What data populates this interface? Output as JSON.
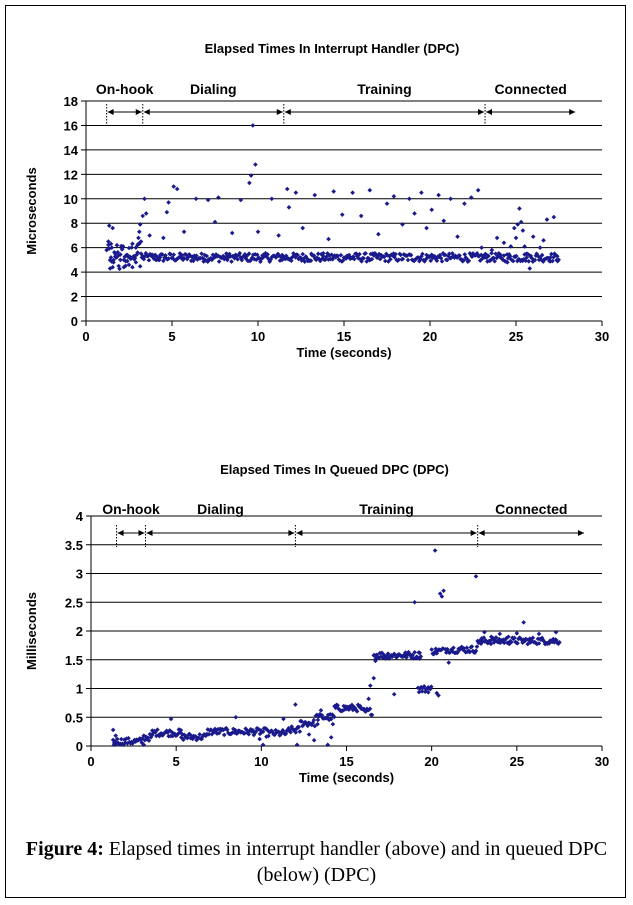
{
  "chart_data": [
    {
      "type": "scatter",
      "title": "Elapsed Times In Interrupt Handler (DPC)",
      "xlabel": "Time (seconds)",
      "ylabel": "Microseconds",
      "xlim": [
        0,
        30
      ],
      "ylim": [
        0,
        18
      ],
      "xticks": [
        0,
        5,
        10,
        15,
        20,
        25,
        30
      ],
      "yticks": [
        0,
        2,
        4,
        6,
        8,
        10,
        12,
        14,
        16,
        18
      ],
      "grid": "horizontal",
      "marker_color": "#1a1a8c",
      "phases": [
        {
          "label": "On-hook",
          "start": 1.2,
          "end": 3.3
        },
        {
          "label": "Dialing",
          "start": 3.3,
          "end": 11.5
        },
        {
          "label": "Training",
          "start": 11.5,
          "end": 23.2
        },
        {
          "label": "Connected",
          "start": 23.2,
          "end": 28.5
        }
      ],
      "points": [
        [
          1.2,
          5.8
        ],
        [
          1.3,
          6.5
        ],
        [
          1.35,
          7.8
        ],
        [
          1.4,
          4.3
        ],
        [
          1.45,
          5.2
        ],
        [
          1.5,
          6.0
        ],
        [
          1.55,
          7.6
        ],
        [
          1.6,
          4.8
        ],
        [
          1.7,
          5.5
        ],
        [
          1.8,
          6.2
        ],
        [
          1.9,
          4.5
        ],
        [
          2.0,
          5.0
        ],
        [
          2.1,
          5.9
        ],
        [
          2.2,
          4.4
        ],
        [
          2.3,
          4.9
        ],
        [
          2.4,
          5.4
        ],
        [
          2.5,
          4.6
        ],
        [
          2.6,
          5.1
        ],
        [
          2.7,
          4.4
        ],
        [
          2.8,
          5.3
        ],
        [
          2.9,
          4.8
        ],
        [
          3.0,
          5.6
        ],
        [
          3.05,
          6.8
        ],
        [
          3.1,
          7.3
        ],
        [
          3.15,
          7.9
        ],
        [
          3.2,
          6.5
        ],
        [
          3.25,
          5.2
        ],
        [
          3.3,
          8.6
        ],
        [
          3.4,
          10.0
        ],
        [
          3.5,
          8.8
        ],
        [
          3.6,
          5.3
        ],
        [
          3.7,
          7.0
        ],
        [
          3.8,
          5.4
        ],
        [
          3.9,
          5.2
        ],
        [
          4.0,
          5.3
        ],
        [
          4.3,
          5.2
        ],
        [
          4.5,
          6.8
        ],
        [
          4.7,
          8.9
        ],
        [
          4.8,
          9.7
        ],
        [
          5.1,
          11.0
        ],
        [
          5.3,
          10.8
        ],
        [
          5.5,
          5.3
        ],
        [
          5.7,
          7.3
        ],
        [
          6.2,
          5.2
        ],
        [
          6.4,
          10.0
        ],
        [
          6.9,
          5.4
        ],
        [
          7.1,
          9.9
        ],
        [
          7.5,
          8.1
        ],
        [
          7.7,
          10.1
        ],
        [
          8.2,
          5.3
        ],
        [
          8.5,
          7.2
        ],
        [
          9.0,
          9.9
        ],
        [
          9.3,
          5.1
        ],
        [
          9.5,
          11.3
        ],
        [
          9.6,
          11.9
        ],
        [
          9.7,
          16.0
        ],
        [
          9.85,
          12.8
        ],
        [
          10.0,
          7.3
        ],
        [
          10.3,
          5.2
        ],
        [
          10.8,
          10.0
        ],
        [
          11.2,
          7.0
        ],
        [
          11.4,
          5.4
        ],
        [
          11.7,
          10.8
        ],
        [
          11.8,
          9.3
        ],
        [
          12.2,
          10.5
        ],
        [
          12.6,
          7.6
        ],
        [
          13.1,
          5.5
        ],
        [
          13.3,
          10.3
        ],
        [
          13.8,
          5.3
        ],
        [
          14.1,
          6.7
        ],
        [
          14.4,
          10.6
        ],
        [
          14.9,
          8.7
        ],
        [
          15.3,
          5.4
        ],
        [
          15.5,
          10.5
        ],
        [
          16.0,
          8.6
        ],
        [
          16.5,
          10.7
        ],
        [
          17.0,
          7.1
        ],
        [
          17.5,
          9.6
        ],
        [
          17.9,
          10.2
        ],
        [
          18.4,
          7.9
        ],
        [
          18.8,
          10.0
        ],
        [
          19.1,
          8.8
        ],
        [
          19.5,
          10.5
        ],
        [
          19.8,
          7.6
        ],
        [
          20.1,
          9.1
        ],
        [
          20.5,
          10.3
        ],
        [
          20.8,
          8.2
        ],
        [
          21.2,
          10.0
        ],
        [
          21.6,
          6.9
        ],
        [
          22.0,
          9.6
        ],
        [
          22.4,
          10.1
        ],
        [
          22.8,
          10.7
        ],
        [
          23.0,
          6.0
        ],
        [
          23.3,
          5.4
        ],
        [
          23.6,
          5.8
        ],
        [
          23.9,
          6.8
        ],
        [
          24.1,
          5.2
        ],
        [
          24.3,
          6.4
        ],
        [
          24.5,
          4.8
        ],
        [
          24.7,
          6.1
        ],
        [
          24.9,
          7.6
        ],
        [
          25.0,
          6.8
        ],
        [
          25.1,
          7.9
        ],
        [
          25.2,
          9.2
        ],
        [
          25.3,
          8.1
        ],
        [
          25.4,
          7.4
        ],
        [
          25.5,
          6.1
        ],
        [
          25.6,
          5.5
        ],
        [
          25.8,
          4.3
        ],
        [
          26.0,
          6.9
        ],
        [
          26.2,
          5.5
        ],
        [
          26.4,
          6.0
        ],
        [
          26.6,
          6.6
        ],
        [
          26.8,
          8.3
        ],
        [
          27.0,
          5.2
        ],
        [
          27.2,
          8.5
        ],
        [
          27.4,
          5.3
        ]
      ],
      "baseline_band": {
        "x": [
          3.3,
          27.5
        ],
        "y": 5.2,
        "spread": 0.35
      }
    },
    {
      "type": "scatter",
      "title": "Elapsed Times In Queued DPC (DPC)",
      "xlabel": "Time (seconds)",
      "ylabel": "Milliseconds",
      "xlim": [
        0,
        30
      ],
      "ylim": [
        0,
        4
      ],
      "xticks": [
        0,
        5,
        10,
        15,
        20,
        25,
        30
      ],
      "yticks": [
        0,
        0.5,
        1,
        1.5,
        2,
        2.5,
        3,
        3.5,
        4
      ],
      "grid": "horizontal",
      "marker_color": "#1a1a8c",
      "phases": [
        {
          "label": "On-hook",
          "start": 1.5,
          "end": 3.2
        },
        {
          "label": "Dialing",
          "start": 3.2,
          "end": 12.0
        },
        {
          "label": "Training",
          "start": 12.0,
          "end": 22.7
        },
        {
          "label": "Connected",
          "start": 22.7,
          "end": 29.0
        }
      ],
      "segments": [
        {
          "x": [
            1.3,
            3.0
          ],
          "y": 0.08
        },
        {
          "x": [
            3.1,
            3.6
          ],
          "y": 0.15
        },
        {
          "x": [
            3.6,
            5.3
          ],
          "y": 0.23
        },
        {
          "x": [
            5.3,
            6.8
          ],
          "y": 0.16
        },
        {
          "x": [
            6.8,
            10.3
          ],
          "y": 0.25
        },
        {
          "x": [
            10.3,
            11.6
          ],
          "y": 0.22
        },
        {
          "x": [
            11.6,
            12.3
          ],
          "y": 0.28
        },
        {
          "x": [
            12.3,
            13.2
          ],
          "y": 0.4
        },
        {
          "x": [
            13.2,
            14.3
          ],
          "y": 0.5
        },
        {
          "x": [
            14.3,
            15.9
          ],
          "y": 0.66
        },
        {
          "x": [
            15.9,
            16.5
          ],
          "y": 0.6
        },
        {
          "x": [
            16.6,
            19.4
          ],
          "y": 1.58
        },
        {
          "x": [
            19.2,
            20.0
          ],
          "y": 0.99
        },
        {
          "x": [
            20.0,
            20.7
          ],
          "y": 1.65
        },
        {
          "x": [
            20.8,
            22.7
          ],
          "y": 1.68
        },
        {
          "x": [
            22.7,
            27.5
          ],
          "y": 1.83
        }
      ],
      "points": [
        [
          1.3,
          0.28
        ],
        [
          1.35,
          0.02
        ],
        [
          1.45,
          0.18
        ],
        [
          3.0,
          0.13
        ],
        [
          3.1,
          0.02
        ],
        [
          4.7,
          0.47
        ],
        [
          8.5,
          0.5
        ],
        [
          9.9,
          0.12
        ],
        [
          10.1,
          0.02
        ],
        [
          11.3,
          0.47
        ],
        [
          12.0,
          0.72
        ],
        [
          12.1,
          0.02
        ],
        [
          12.8,
          0.2
        ],
        [
          13.1,
          0.1
        ],
        [
          13.3,
          0.38
        ],
        [
          13.5,
          0.62
        ],
        [
          13.9,
          0.02
        ],
        [
          14.1,
          0.15
        ],
        [
          14.2,
          0.38
        ],
        [
          16.1,
          0.6
        ],
        [
          16.3,
          0.82
        ],
        [
          16.4,
          1.05
        ],
        [
          16.6,
          1.18
        ],
        [
          16.7,
          1.48
        ],
        [
          17.3,
          1.52
        ],
        [
          17.8,
          0.9
        ],
        [
          18.5,
          1.55
        ],
        [
          19.0,
          2.5
        ],
        [
          19.3,
          1.62
        ],
        [
          19.8,
          1.02
        ],
        [
          20.2,
          3.4
        ],
        [
          20.3,
          0.92
        ],
        [
          20.4,
          0.88
        ],
        [
          20.5,
          2.65
        ],
        [
          20.6,
          2.6
        ],
        [
          20.7,
          2.7
        ],
        [
          21.0,
          1.45
        ],
        [
          21.5,
          1.62
        ],
        [
          22.6,
          2.95
        ],
        [
          22.9,
          1.78
        ],
        [
          23.1,
          1.98
        ],
        [
          23.5,
          1.9
        ],
        [
          24.0,
          1.95
        ],
        [
          24.5,
          1.9
        ],
        [
          25.0,
          1.96
        ],
        [
          25.4,
          2.15
        ],
        [
          25.8,
          1.8
        ],
        [
          26.3,
          1.95
        ],
        [
          26.8,
          1.78
        ],
        [
          27.3,
          1.98
        ]
      ]
    }
  ],
  "caption": {
    "label": "Figure 4:",
    "text": " Elapsed times in interrupt handler (above) and in queued DPC (below) (DPC)"
  }
}
